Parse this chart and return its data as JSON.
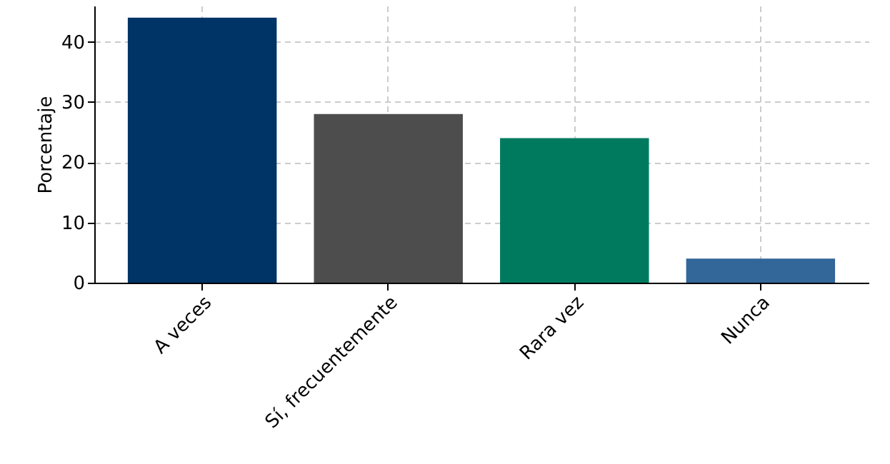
{
  "chart_data": {
    "type": "bar",
    "ylabel": "Porcentaje",
    "categories": [
      "A veces",
      "Sí, frecuentemente",
      "Rara vez",
      "Nunca"
    ],
    "values": [
      44,
      28,
      24,
      4
    ],
    "colors": [
      "#003366",
      "#4d4d4d",
      "#007a5e",
      "#336699"
    ],
    "ylim": [
      0,
      46
    ],
    "yticks": [
      0,
      10,
      20,
      30,
      40
    ],
    "grid": true
  }
}
